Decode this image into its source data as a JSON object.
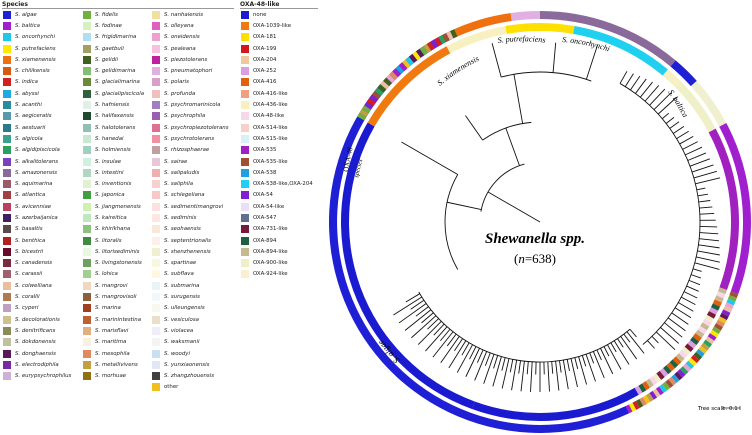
{
  "species_legend": {
    "title": "Species",
    "columns": [
      [
        {
          "label": "S. algae",
          "color": "#1f1fd6"
        },
        {
          "label": "S. baltica",
          "color": "#a020d0"
        },
        {
          "label": "S. oncorhynchi",
          "color": "#1ec8e6"
        },
        {
          "label": "S. putrefaciens",
          "color": "#ffe800"
        },
        {
          "label": "S. xiamenensis",
          "color": "#f07010"
        },
        {
          "label": "S. chilikensis",
          "color": "#d85a10"
        },
        {
          "label": "S. indica",
          "color": "#d21f1f"
        },
        {
          "label": "S. abyssi",
          "color": "#20a9e0"
        },
        {
          "label": "S. acanthi",
          "color": "#2a8aa0"
        },
        {
          "label": "S. aegiceratis",
          "color": "#5a9aa8"
        },
        {
          "label": "S. aestuarii",
          "color": "#2a7a8a"
        },
        {
          "label": "S. algicola",
          "color": "#3aa090"
        },
        {
          "label": "S. algidipiscicola",
          "color": "#2aa060"
        },
        {
          "label": "S. alkalitolerans",
          "color": "#7a40c0"
        },
        {
          "label": "S. amazonensis",
          "color": "#8a6a9a"
        },
        {
          "label": "S. aquimarina",
          "color": "#9a5a6a"
        },
        {
          "label": "S. atlantica",
          "color": "#a04040"
        },
        {
          "label": "S. avicenniae",
          "color": "#b84060"
        },
        {
          "label": "S. azerbaijanica",
          "color": "#402060"
        },
        {
          "label": "S. basaltis",
          "color": "#5a4a4a"
        },
        {
          "label": "S. benthica",
          "color": "#b02020"
        },
        {
          "label": "S. bicestrii",
          "color": "#6a0a2a"
        },
        {
          "label": "S. canadensis",
          "color": "#7a2a40"
        },
        {
          "label": "S. carassii",
          "color": "#a06070"
        },
        {
          "label": "S. colwelliana",
          "color": "#e8c0a0"
        },
        {
          "label": "S. corallii",
          "color": "#b07a50"
        },
        {
          "label": "S. cyperi",
          "color": "#c0a0c0"
        },
        {
          "label": "S. decolorationis",
          "color": "#d0c090"
        },
        {
          "label": "S. denitrificans",
          "color": "#8a8a5a"
        },
        {
          "label": "S. dokdonensis",
          "color": "#c0c0a0"
        },
        {
          "label": "S. donghaensis",
          "color": "#5a1a5a"
        },
        {
          "label": "S. electrodiphila",
          "color": "#7a2aa0"
        },
        {
          "label": "S. eurypsychrophilus",
          "color": "#d0b0d0"
        }
      ],
      [
        {
          "label": "S. fidelis",
          "color": "#70b040"
        },
        {
          "label": "S. fodinae",
          "color": "#d8f0c0"
        },
        {
          "label": "S. frigidimarina",
          "color": "#b0e0f0"
        },
        {
          "label": "S. gaetbuli",
          "color": "#a0a060"
        },
        {
          "label": "S. gelidii",
          "color": "#406020"
        },
        {
          "label": "S. gelidimarina",
          "color": "#80c070"
        },
        {
          "label": "S. glacialimarina",
          "color": "#6a8a3a"
        },
        {
          "label": "S. glacialipiscicola",
          "color": "#306040"
        },
        {
          "label": "S. hafniensis",
          "color": "#e0f0e8"
        },
        {
          "label": "S. halifaxensis",
          "color": "#204a30"
        },
        {
          "label": "S. halotolerans",
          "color": "#90c0b0"
        },
        {
          "label": "S. hanedai",
          "color": "#c8e8d0"
        },
        {
          "label": "S. holmiensis",
          "color": "#a0d0c0"
        },
        {
          "label": "S. insulae",
          "color": "#d0f0e0"
        },
        {
          "label": "S. intestini",
          "color": "#b0d8c0"
        },
        {
          "label": "S. inventionis",
          "color": "#e0f0d0"
        },
        {
          "label": "S. japonica",
          "color": "#40a040"
        },
        {
          "label": "S. jiangmenensis",
          "color": "#d0f0b0"
        },
        {
          "label": "S. kaireitica",
          "color": "#c0e8c0"
        },
        {
          "label": "S. khirikhana",
          "color": "#90c080"
        },
        {
          "label": "S. litoralis",
          "color": "#408a40"
        },
        {
          "label": "S. litorisediminis",
          "color": "#e8f8e0"
        },
        {
          "label": "S. livingstonensis",
          "color": "#70a060"
        },
        {
          "label": "S. lohica",
          "color": "#a0d090"
        },
        {
          "label": "S. mangrovi",
          "color": "#f0d8c0"
        },
        {
          "label": "S. mangrovisoli",
          "color": "#8a6040"
        },
        {
          "label": "S. marina",
          "color": "#a04020"
        },
        {
          "label": "S. marinintestina",
          "color": "#c06030"
        },
        {
          "label": "S. marisflavi",
          "color": "#e0b080"
        },
        {
          "label": "S. maritima",
          "color": "#f8f0e0"
        },
        {
          "label": "S. mesophila",
          "color": "#e08a60"
        },
        {
          "label": "S. metallivivens",
          "color": "#c0a040"
        },
        {
          "label": "S. morhuae",
          "color": "#907010"
        }
      ],
      [
        {
          "label": "S. nanhaiensis",
          "color": "#f0e0a0"
        },
        {
          "label": "S. olleyana",
          "color": "#e060c0"
        },
        {
          "label": "S. oneidensis",
          "color": "#f0a0d0"
        },
        {
          "label": "S. pealeana",
          "color": "#f8c0e0"
        },
        {
          "label": "S. piezotolerans",
          "color": "#c020a0"
        },
        {
          "label": "S. pneumatophori",
          "color": "#e0b0e0"
        },
        {
          "label": "S. polaris",
          "color": "#d8a0c8"
        },
        {
          "label": "S. profunda",
          "color": "#f0c0c0"
        },
        {
          "label": "S. psychromarinicola",
          "color": "#a080c0"
        },
        {
          "label": "S. psychrophila",
          "color": "#9a60b0"
        },
        {
          "label": "S. psychropiezotolerans",
          "color": "#e07090"
        },
        {
          "label": "S. psychrotolerans",
          "color": "#f090a0"
        },
        {
          "label": "S. rhizosphaerae",
          "color": "#c0a0a0"
        },
        {
          "label": "S. sairae",
          "color": "#e8c8d8"
        },
        {
          "label": "S. salipaludis",
          "color": "#f0b0b0"
        },
        {
          "label": "S. saliphila",
          "color": "#f8d0d0"
        },
        {
          "label": "S. schlegeliana",
          "color": "#f8c8c8"
        },
        {
          "label": "S. sedimentimangrovi",
          "color": "#fde0e0"
        },
        {
          "label": "S. sediminis",
          "color": "#fce8e0"
        },
        {
          "label": "S. seohaensis",
          "color": "#f8e8d8"
        },
        {
          "label": "S. septentrionalis",
          "color": "#fdf0e8"
        },
        {
          "label": "S. shenzhenensis",
          "color": "#f0f0d0"
        },
        {
          "label": "S. spartinae",
          "color": "#f8f8e0"
        },
        {
          "label": "S. subflava",
          "color": "#fff8e0"
        },
        {
          "label": "S. submarina",
          "color": "#e8f4f8"
        },
        {
          "label": "S. surugensis",
          "color": "#f0f8f8"
        },
        {
          "label": "S. ulleungensis",
          "color": "#f8f8f0"
        },
        {
          "label": "S. vesiculosa",
          "color": "#e8e0c8"
        },
        {
          "label": "S. violacea",
          "color": "#f0ecf8"
        },
        {
          "label": "S. waksmanii",
          "color": "#f4f4f4"
        },
        {
          "label": "S. woodyi",
          "color": "#c8e0f0"
        },
        {
          "label": "S. yunxiaonensis",
          "color": "#e0e8f4"
        },
        {
          "label": "S. zhangzhouensis",
          "color": "#404040"
        },
        {
          "label": "other",
          "color": "#f0c020"
        }
      ]
    ]
  },
  "oxa_legend": {
    "title": "OXA-48-like",
    "items": [
      {
        "label": "none",
        "color": "#1a1ad0"
      },
      {
        "label": "OXA-1039-like",
        "color": "#f07a10"
      },
      {
        "label": "OXA-181",
        "color": "#ffe000"
      },
      {
        "label": "OXA-199",
        "color": "#d21818"
      },
      {
        "label": "OXA-204",
        "color": "#f0c8a0"
      },
      {
        "label": "OXA-252",
        "color": "#d8a0e0"
      },
      {
        "label": "OXA-416",
        "color": "#e06010"
      },
      {
        "label": "OXA-416-like",
        "color": "#f0a080"
      },
      {
        "label": "OXA-436-like",
        "color": "#f8f0c0"
      },
      {
        "label": "OXA-48-like",
        "color": "#f8d8e8"
      },
      {
        "label": "OXA-514-like",
        "color": "#f4d0c8"
      },
      {
        "label": "OXA-515-like",
        "color": "#d8f0f8"
      },
      {
        "label": "OXA-535",
        "color": "#a020c0"
      },
      {
        "label": "OXA-535-like",
        "color": "#a05030"
      },
      {
        "label": "OXA-538",
        "color": "#20a0e0"
      },
      {
        "label": "OXA-538-like,OXA-204",
        "color": "#20d0f0"
      },
      {
        "label": "OXA-54",
        "color": "#8020d0"
      },
      {
        "label": "OXA-54-like",
        "color": "#e8e0f8"
      },
      {
        "label": "OXA-547",
        "color": "#607090"
      },
      {
        "label": "OXA-731-like",
        "color": "#7a1a3a"
      },
      {
        "label": "OXA-894",
        "color": "#206040"
      },
      {
        "label": "OXA-894-like",
        "color": "#c8b890"
      },
      {
        "label": "OXA-900-like",
        "color": "#f0f0c8"
      },
      {
        "label": "OXA-924-like",
        "color": "#f8f0d0"
      }
    ]
  },
  "tree": {
    "title": "Shewanella spp.",
    "count_prefix": "(",
    "count_var": "n",
    "count_value": "=638)",
    "ring_labels": {
      "algae": "S. algae",
      "xiamenensis": "S. xiamenensis",
      "putrefaciens": "S. putrefaciens",
      "oncorhynchi": "S. oncorhynchi",
      "baltica": "S. baltica",
      "oxa48": "OXA-48",
      "species": "species"
    },
    "scale_label": "Tree scale: 0.1"
  }
}
